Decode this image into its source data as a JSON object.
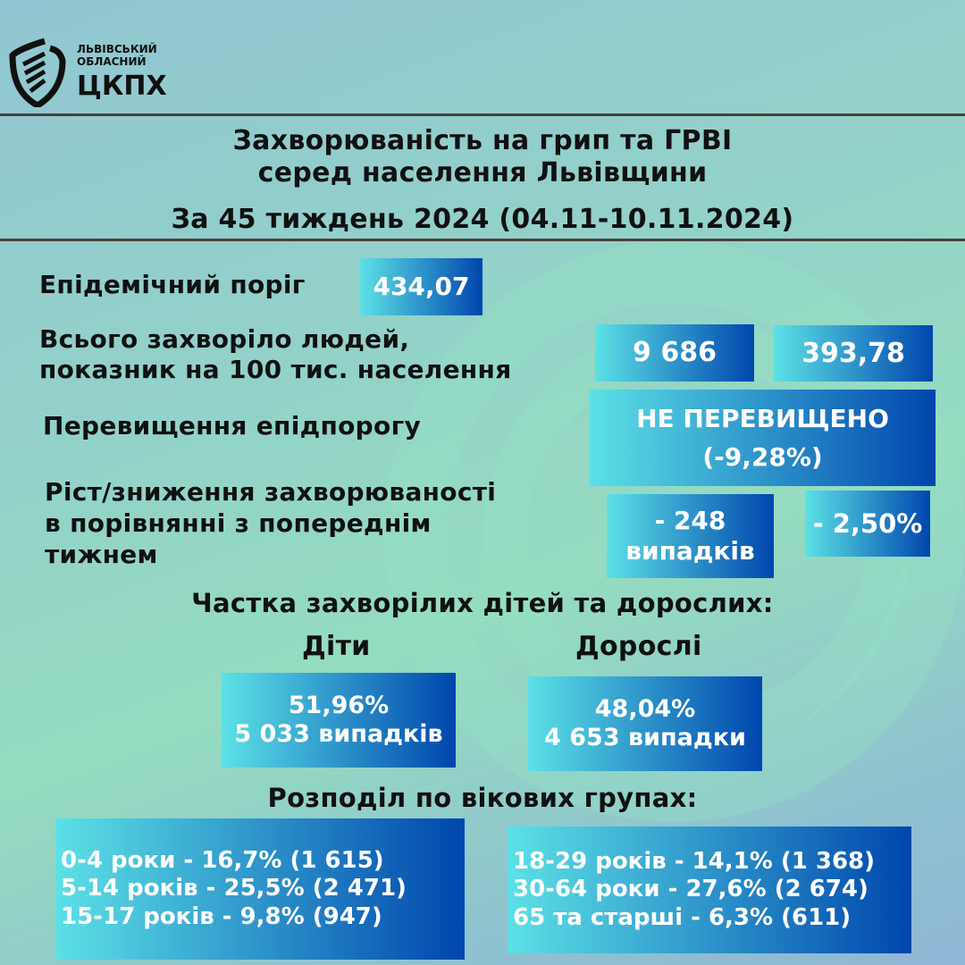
{
  "logo": {
    "line1": "ЛЬВІВСЬКИЙ",
    "line2": "ОБЛАСНИЙ",
    "line3": "ЦКПХ"
  },
  "title": {
    "line1": "Захворюваність на грип та ГРВІ",
    "line2": "серед населення Львівщини",
    "period": "За 45 тиждень 2024 (04.11-10.11.2024)"
  },
  "threshold": {
    "label": "Епідемічний поріг",
    "value": "434,07"
  },
  "total": {
    "label1": "Всього захворіло людей,",
    "label2": "показник на 100 тис. населення",
    "count": "9 686",
    "rate": "393,78"
  },
  "exceed": {
    "label": "Перевищення епідпорогу",
    "status": "НЕ ПЕРЕВИЩЕНО",
    "percent": "(-9,28%)"
  },
  "change": {
    "label1": "Ріст/зниження захворюваності",
    "label2": "в порівнянні з попереднім",
    "label3": "тижнем",
    "cases": "- 248",
    "cases_unit": "випадків",
    "percent": "- 2,50%"
  },
  "share": {
    "heading": "Частка захворілих дітей та дорослих:",
    "children_label": "Діти",
    "children_pct": "51,96%",
    "children_cases": "5 033 випадків",
    "adults_label": "Дорослі",
    "adults_pct": "48,04%",
    "adults_cases": "4 653 випадки"
  },
  "age": {
    "heading": "Розподіл по вікових групах:",
    "left": [
      "0-4 роки - 16,7% (1 615)",
      "5-14 років - 25,5% (2 471)",
      "15-17 років - 9,8% (947)"
    ],
    "right": [
      "18-29 років - 14,1% (1 368)",
      "30-64 роки - 27,6% (2 674)",
      "65 та старші - 6,3% (611)"
    ]
  },
  "colors": {
    "gradient_start": "#5ce1e6",
    "gradient_end": "#0046ad",
    "rule": "#4a3f3a"
  }
}
